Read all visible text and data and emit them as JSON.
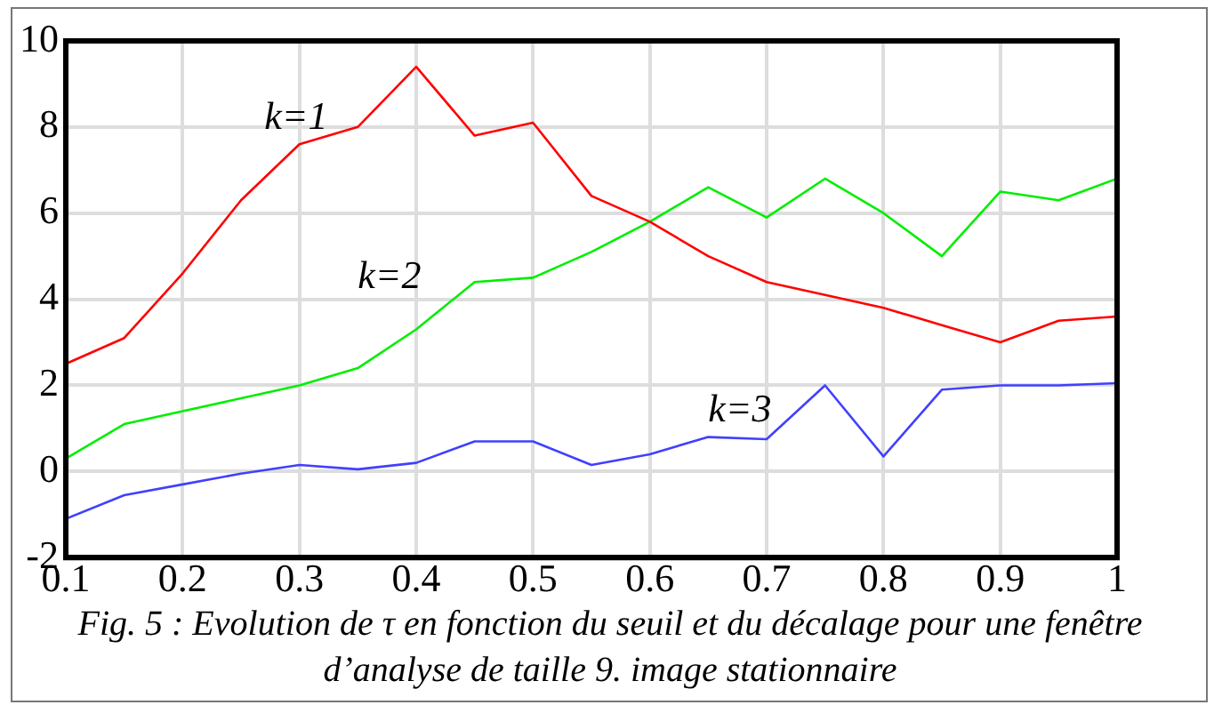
{
  "chart_data": {
    "type": "line",
    "title": "Fig. 5 : Evolution de τ en fonction du seuil et du décalage pour une fenêtre d’analyse de taille 9. image stationnaire",
    "x": [
      0.1,
      0.15,
      0.2,
      0.25,
      0.3,
      0.35,
      0.4,
      0.45,
      0.5,
      0.55,
      0.6,
      0.65,
      0.7,
      0.75,
      0.8,
      0.85,
      0.9,
      0.95,
      1
    ],
    "series": [
      {
        "name": "k=1",
        "color": "#ff0000",
        "values": [
          2.5,
          3.1,
          4.6,
          6.3,
          7.6,
          8.0,
          9.4,
          7.8,
          8.1,
          6.4,
          5.8,
          5.0,
          4.4,
          4.1,
          3.8,
          3.4,
          3.0,
          3.5,
          3.6
        ]
      },
      {
        "name": "k=2",
        "color": "#00ee00",
        "values": [
          0.3,
          1.1,
          1.4,
          1.7,
          2.0,
          2.4,
          3.3,
          4.4,
          4.5,
          5.1,
          5.8,
          6.6,
          5.9,
          6.8,
          6.0,
          5.0,
          6.5,
          6.3,
          6.8
        ]
      },
      {
        "name": "k=3",
        "color": "#4040ff",
        "values": [
          -1.1,
          -0.55,
          -0.3,
          -0.05,
          0.15,
          0.05,
          0.2,
          0.7,
          0.7,
          0.15,
          0.4,
          0.8,
          0.75,
          2.0,
          0.35,
          1.9,
          2.0,
          2.0,
          2.05
        ]
      }
    ],
    "xlim": [
      0.1,
      1
    ],
    "xticks": [
      0.1,
      0.2,
      0.3,
      0.4,
      0.5,
      0.6,
      0.7,
      0.8,
      0.9,
      1
    ],
    "ylim": [
      -2,
      10
    ],
    "yticks": [
      -2,
      0,
      2,
      4,
      6,
      8,
      10
    ],
    "grid": true,
    "legend": false,
    "marker": "none",
    "line_style": "solid"
  }
}
